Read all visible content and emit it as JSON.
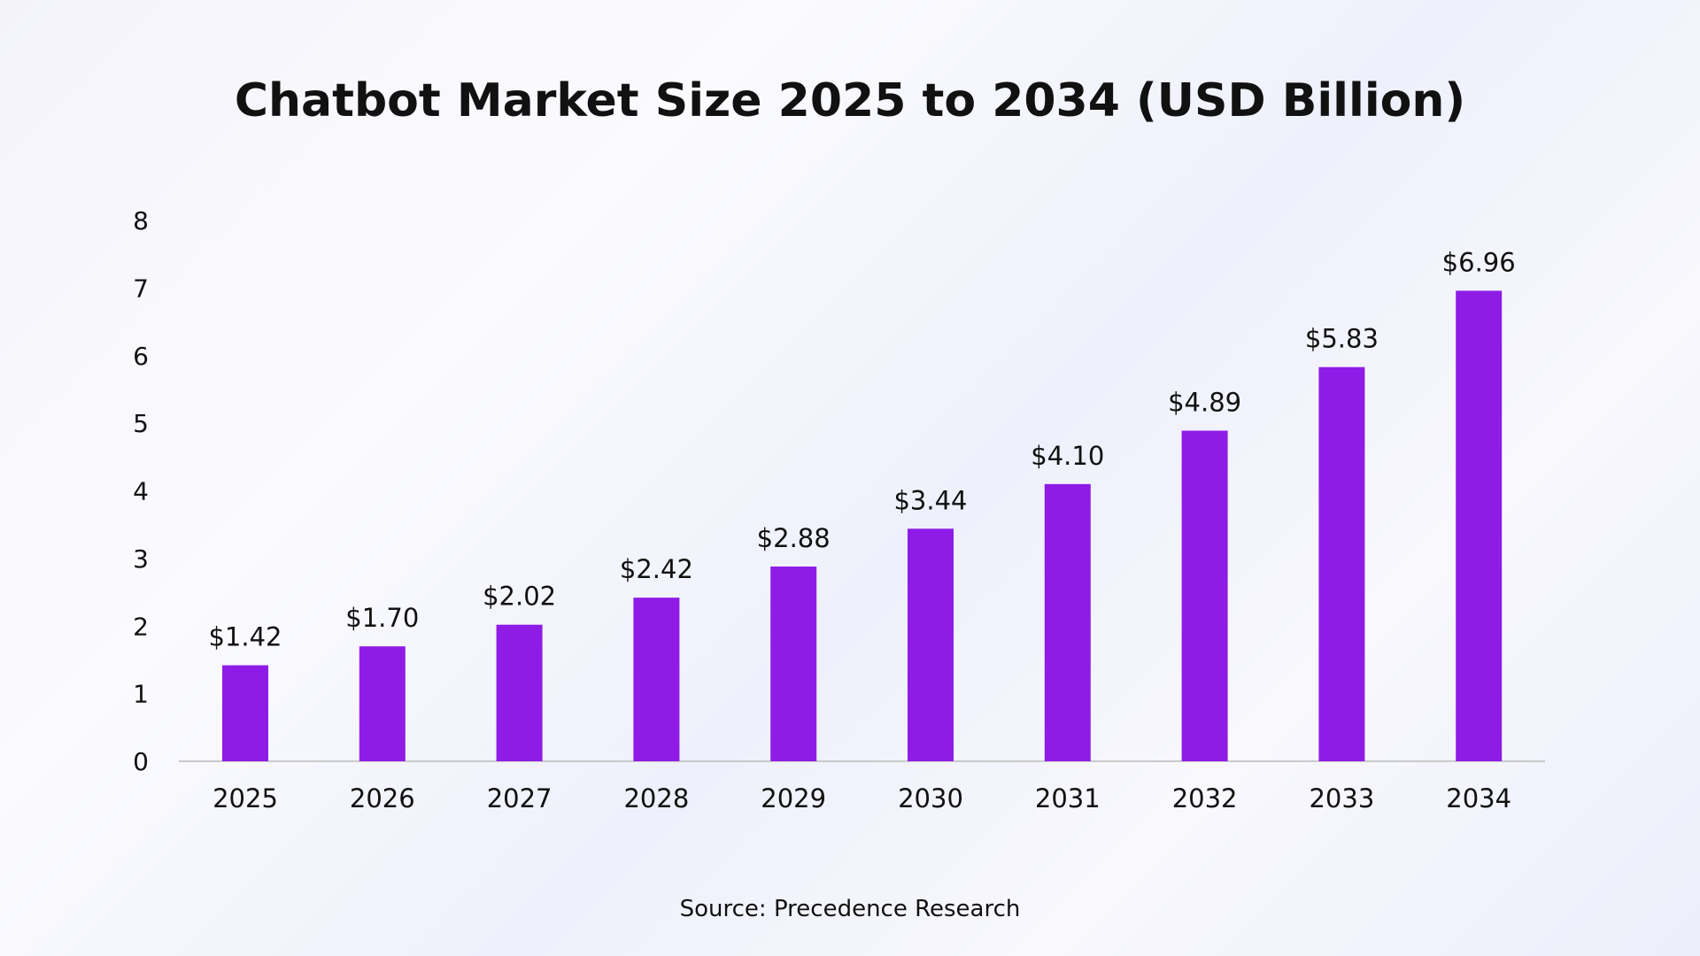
{
  "chart_data": {
    "type": "bar",
    "title": "Chatbot Market Size 2025 to 2034 (USD Billion)",
    "categories": [
      "2025",
      "2026",
      "2027",
      "2028",
      "2029",
      "2030",
      "2031",
      "2032",
      "2033",
      "2034"
    ],
    "values": [
      1.42,
      1.7,
      2.02,
      2.42,
      2.88,
      3.44,
      4.1,
      4.89,
      5.83,
      6.96
    ],
    "data_labels": [
      "$1.42",
      "$1.70",
      "$2.02",
      "$2.42",
      "$2.88",
      "$3.44",
      "$4.10",
      "$4.89",
      "$5.83",
      "$6.96"
    ],
    "yticks": [
      0,
      1,
      2,
      3,
      4,
      5,
      6,
      7,
      8
    ],
    "ylim": [
      0,
      8
    ],
    "xlabel": "",
    "ylabel": "",
    "grid": false,
    "bar_color": "#8f1ce6",
    "source": "Source: Precedence Research"
  }
}
